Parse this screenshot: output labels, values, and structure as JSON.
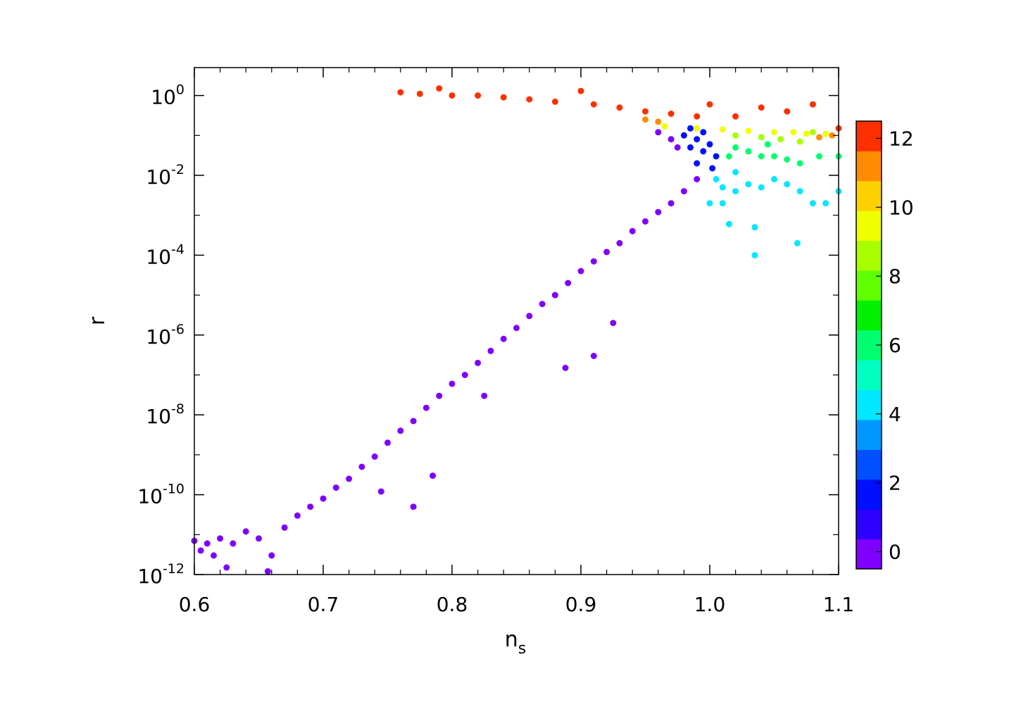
{
  "chart_data": {
    "type": "scatter",
    "title": "",
    "xlabel": {
      "base": "n",
      "sub": "s"
    },
    "ylabel": "r",
    "xlim": [
      0.6,
      1.1
    ],
    "ylim": [
      1e-12,
      5
    ],
    "y_scale": "log",
    "grid": false,
    "x_ticks": [
      {
        "value": 0.6,
        "label": "0.6"
      },
      {
        "value": 0.7,
        "label": "0.7"
      },
      {
        "value": 0.8,
        "label": "0.8"
      },
      {
        "value": 0.9,
        "label": "0.9"
      },
      {
        "value": 1.0,
        "label": "1.0"
      },
      {
        "value": 1.1,
        "label": "1.1"
      }
    ],
    "y_ticks": [
      {
        "value": 1,
        "base": "10",
        "exp": "0"
      },
      {
        "value": 0.01,
        "base": "10",
        "exp": "-2"
      },
      {
        "value": 0.0001,
        "base": "10",
        "exp": "-4"
      },
      {
        "value": 1e-06,
        "base": "10",
        "exp": "-6"
      },
      {
        "value": 1e-08,
        "base": "10",
        "exp": "-8"
      },
      {
        "value": 1e-10,
        "base": "10",
        "exp": "-10"
      },
      {
        "value": 1e-12,
        "base": "10",
        "exp": "-12"
      }
    ],
    "colorbar": {
      "range": [
        -0.5,
        12.5
      ],
      "ticks": [
        {
          "value": 0,
          "label": "0"
        },
        {
          "value": 2,
          "label": "2"
        },
        {
          "value": 4,
          "label": "4"
        },
        {
          "value": 6,
          "label": "6"
        },
        {
          "value": 8,
          "label": "8"
        },
        {
          "value": 10,
          "label": "10"
        },
        {
          "value": 12,
          "label": "12"
        }
      ],
      "levels": [
        {
          "value": 0,
          "color": "#7f00ff"
        },
        {
          "value": 1,
          "color": "#2e00ff"
        },
        {
          "value": 2,
          "color": "#0010ff"
        },
        {
          "value": 3,
          "color": "#0050ff"
        },
        {
          "value": 4,
          "color": "#0098ff"
        },
        {
          "value": 5,
          "color": "#00e8ff"
        },
        {
          "value": 6,
          "color": "#00ffc0"
        },
        {
          "value": 7,
          "color": "#00ff70"
        },
        {
          "value": 8,
          "color": "#00f000"
        },
        {
          "value": 9,
          "color": "#60ff00"
        },
        {
          "value": 10,
          "color": "#a8ff00"
        },
        {
          "value": 11,
          "color": "#f0ff00"
        },
        {
          "value": 12,
          "color": "#ffd000"
        },
        {
          "value": 13,
          "color": "#ff8c00"
        },
        {
          "value": 14,
          "color": "#ff3000"
        }
      ]
    },
    "series": [
      {
        "color_value": 0,
        "color": "#7f00ff",
        "points": [
          [
            0.6,
            7e-12
          ],
          [
            0.605,
            4e-12
          ],
          [
            0.61,
            6e-12
          ],
          [
            0.615,
            3e-12
          ],
          [
            0.62,
            8e-12
          ],
          [
            0.625,
            1.5e-12
          ],
          [
            0.63,
            6e-12
          ],
          [
            0.64,
            1.2e-11
          ],
          [
            0.65,
            8e-12
          ],
          [
            0.66,
            3e-12
          ],
          [
            0.657,
            1.2e-12
          ],
          [
            0.67,
            1.5e-11
          ],
          [
            0.68,
            3e-11
          ],
          [
            0.69,
            5e-11
          ],
          [
            0.7,
            8e-11
          ],
          [
            0.71,
            1.5e-10
          ],
          [
            0.72,
            2.5e-10
          ],
          [
            0.73,
            5e-10
          ],
          [
            0.74,
            9e-10
          ],
          [
            0.745,
            1.2e-10
          ],
          [
            0.75,
            2e-09
          ],
          [
            0.76,
            4e-09
          ],
          [
            0.77,
            7e-09
          ],
          [
            0.77,
            5e-11
          ],
          [
            0.78,
            1.5e-08
          ],
          [
            0.785,
            3e-10
          ],
          [
            0.79,
            3e-08
          ],
          [
            0.8,
            6e-08
          ],
          [
            0.81,
            1e-07
          ],
          [
            0.82,
            2e-07
          ],
          [
            0.825,
            3e-08
          ],
          [
            0.83,
            4e-07
          ],
          [
            0.84,
            8e-07
          ],
          [
            0.85,
            1.5e-06
          ],
          [
            0.86,
            3e-06
          ],
          [
            0.87,
            6e-06
          ],
          [
            0.88,
            1e-05
          ],
          [
            0.888,
            1.5e-07
          ],
          [
            0.89,
            2e-05
          ],
          [
            0.9,
            4e-05
          ],
          [
            0.91,
            7e-05
          ],
          [
            0.91,
            3e-07
          ],
          [
            0.92,
            0.00012
          ],
          [
            0.925,
            2e-06
          ],
          [
            0.93,
            0.0002
          ],
          [
            0.94,
            0.0004
          ],
          [
            0.95,
            0.0007
          ],
          [
            0.96,
            0.0012
          ],
          [
            0.97,
            0.002
          ],
          [
            0.98,
            0.004
          ],
          [
            0.99,
            0.008
          ],
          [
            0.975,
            0.05
          ],
          [
            0.97,
            0.08
          ],
          [
            0.96,
            0.12
          ]
        ]
      },
      {
        "color_value": 2,
        "color": "#0010ff",
        "points": [
          [
            0.985,
            0.05
          ],
          [
            0.99,
            0.08
          ],
          [
            0.995,
            0.04
          ],
          [
            1.0,
            0.06
          ],
          [
            0.98,
            0.1
          ],
          [
            0.995,
            0.12
          ],
          [
            1.005,
            0.03
          ],
          [
            0.99,
            0.02
          ],
          [
            1.002,
            0.015
          ],
          [
            0.985,
            0.15
          ]
        ]
      },
      {
        "color_value": 4,
        "color": "#00e8ff",
        "points": [
          [
            1.005,
            0.008
          ],
          [
            1.01,
            0.005
          ],
          [
            1.02,
            0.004
          ],
          [
            1.03,
            0.006
          ],
          [
            1.04,
            0.005
          ],
          [
            1.05,
            0.008
          ],
          [
            1.06,
            0.006
          ],
          [
            1.07,
            0.004
          ],
          [
            1.08,
            0.002
          ],
          [
            1.09,
            0.002
          ],
          [
            1.1,
            0.004
          ],
          [
            1.035,
            0.0005
          ],
          [
            1.035,
            0.0001
          ],
          [
            1.068,
            0.0002
          ],
          [
            1.015,
            0.0006
          ],
          [
            1.01,
            0.002
          ],
          [
            1.0,
            0.002
          ],
          [
            1.02,
            0.012
          ]
        ]
      },
      {
        "color_value": 7,
        "color": "#00ff70",
        "points": [
          [
            1.02,
            0.05
          ],
          [
            1.03,
            0.04
          ],
          [
            1.04,
            0.03
          ],
          [
            1.05,
            0.03
          ],
          [
            1.06,
            0.025
          ],
          [
            1.07,
            0.02
          ],
          [
            1.085,
            0.03
          ],
          [
            1.1,
            0.03
          ],
          [
            1.045,
            0.06
          ],
          [
            1.015,
            0.03
          ]
        ]
      },
      {
        "color_value": 10,
        "color": "#a8ff00",
        "points": [
          [
            1.02,
            0.1
          ],
          [
            1.04,
            0.09
          ],
          [
            1.055,
            0.08
          ],
          [
            1.07,
            0.07
          ],
          [
            1.08,
            0.12
          ]
        ]
      },
      {
        "color_value": 11,
        "color": "#f0ff00",
        "points": [
          [
            0.965,
            0.17
          ],
          [
            0.99,
            0.15
          ],
          [
            1.01,
            0.14
          ],
          [
            1.03,
            0.13
          ],
          [
            1.05,
            0.12
          ],
          [
            1.065,
            0.12
          ],
          [
            1.075,
            0.11
          ],
          [
            1.09,
            0.11
          ]
        ]
      },
      {
        "color_value": 13,
        "color": "#ff8c00",
        "points": [
          [
            0.95,
            0.25
          ],
          [
            0.96,
            0.22
          ],
          [
            1.085,
            0.09
          ],
          [
            1.095,
            0.1
          ]
        ]
      },
      {
        "color_value": 14,
        "color": "#ff3000",
        "points": [
          [
            0.76,
            1.2
          ],
          [
            0.775,
            1.1
          ],
          [
            0.79,
            1.5
          ],
          [
            0.8,
            1.0
          ],
          [
            0.82,
            1.0
          ],
          [
            0.84,
            0.9
          ],
          [
            0.86,
            0.8
          ],
          [
            0.88,
            0.7
          ],
          [
            0.9,
            1.3
          ],
          [
            0.91,
            0.6
          ],
          [
            0.93,
            0.5
          ],
          [
            0.95,
            0.4
          ],
          [
            0.97,
            0.35
          ],
          [
            0.99,
            0.3
          ],
          [
            1.0,
            0.6
          ],
          [
            1.02,
            0.3
          ],
          [
            1.04,
            0.5
          ],
          [
            1.06,
            0.4
          ],
          [
            1.08,
            0.6
          ],
          [
            1.1,
            0.15
          ]
        ]
      }
    ]
  }
}
